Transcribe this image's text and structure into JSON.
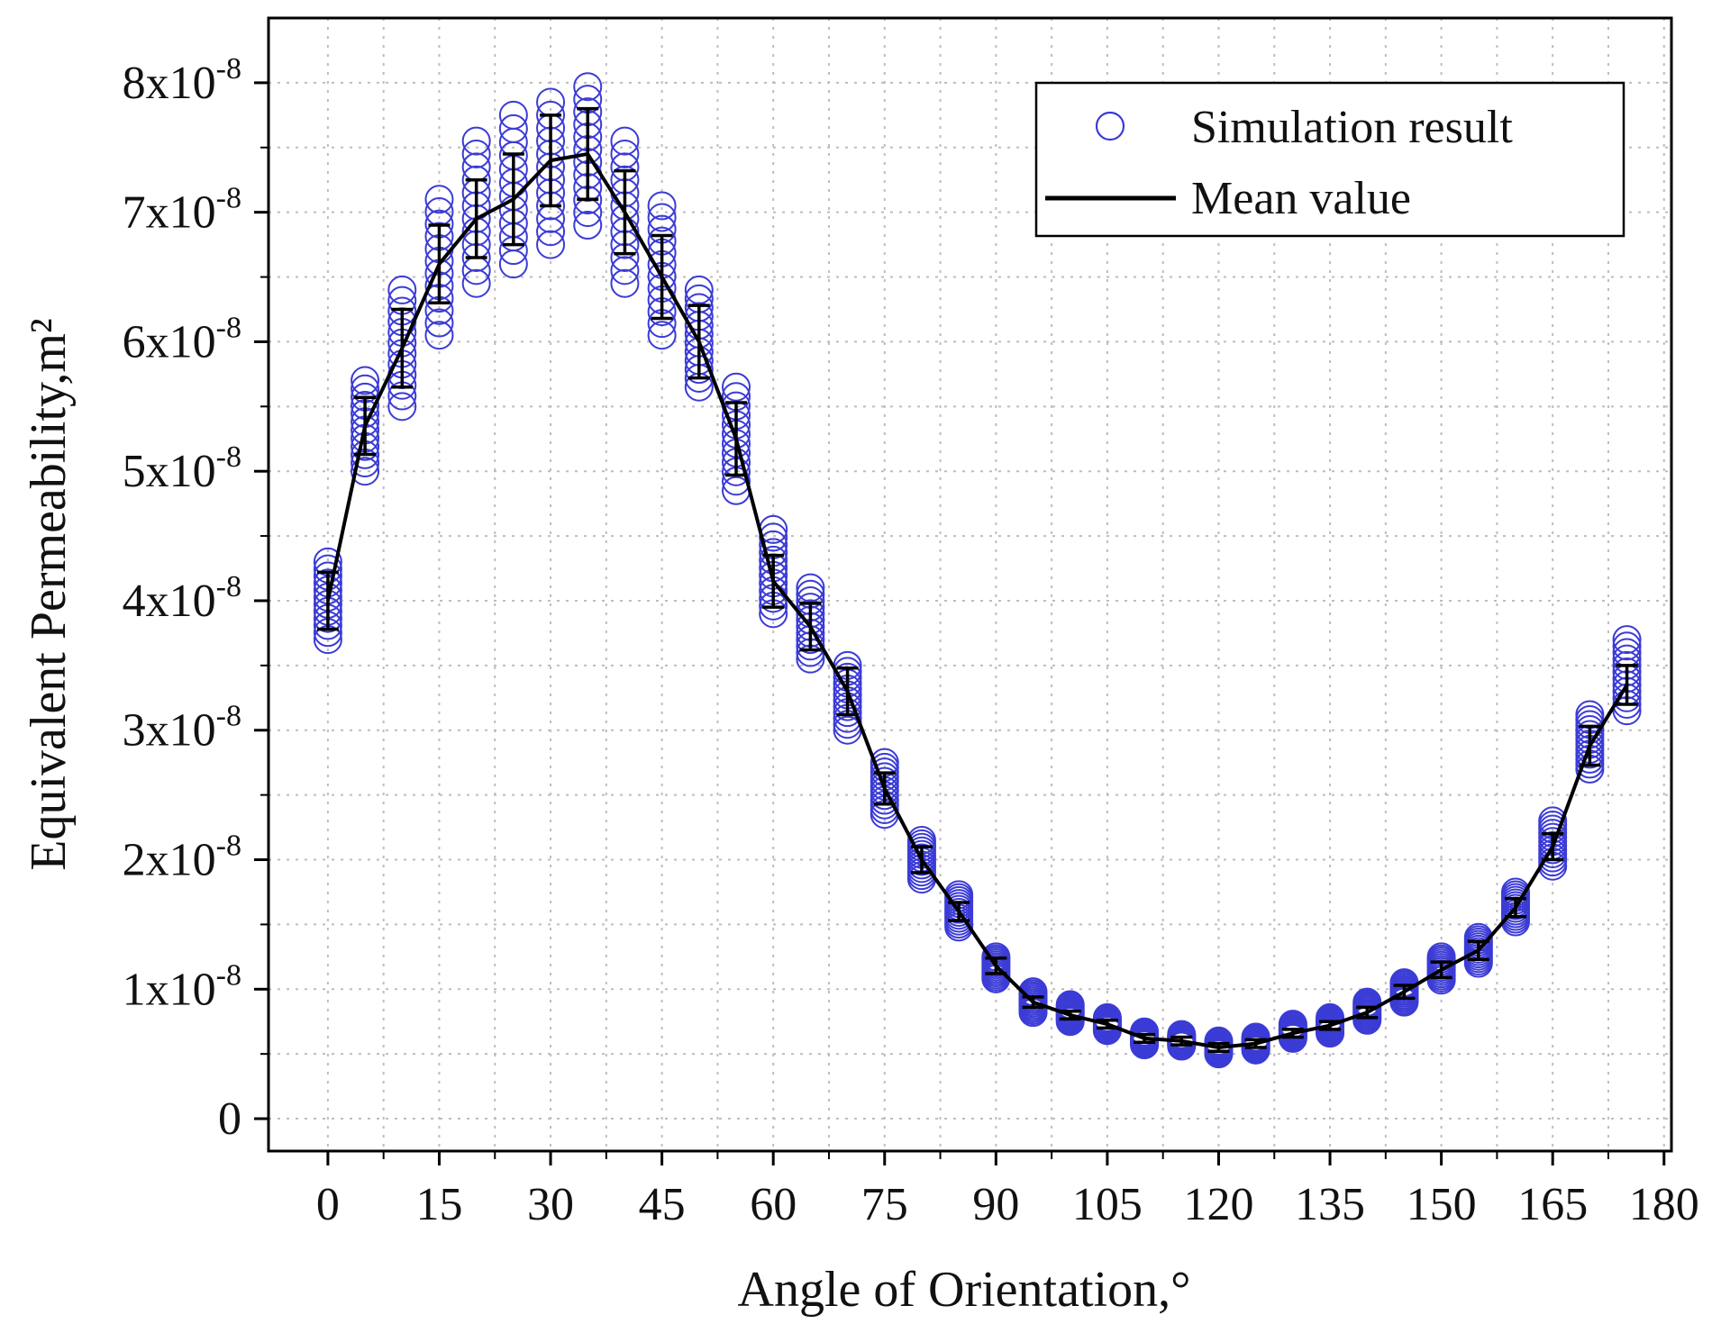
{
  "chart_data": {
    "type": "scatter",
    "xlabel": "Angle of Orientation,°",
    "ylabel": "Equivalent Permeability,m²",
    "xlim": [
      -8,
      181
    ],
    "ylim": [
      -2.5e-09,
      8.5e-08
    ],
    "x_ticks": [
      0,
      15,
      30,
      45,
      60,
      75,
      90,
      105,
      120,
      135,
      150,
      165,
      180
    ],
    "y_ticks": [
      {
        "value": 0,
        "mantissa": "0",
        "exponent": ""
      },
      {
        "value": 1e-08,
        "mantissa": "1x10",
        "exponent": "-8"
      },
      {
        "value": 2e-08,
        "mantissa": "2x10",
        "exponent": "-8"
      },
      {
        "value": 3e-08,
        "mantissa": "3x10",
        "exponent": "-8"
      },
      {
        "value": 4e-08,
        "mantissa": "4x10",
        "exponent": "-8"
      },
      {
        "value": 5e-08,
        "mantissa": "5x10",
        "exponent": "-8"
      },
      {
        "value": 6e-08,
        "mantissa": "6x10",
        "exponent": "-8"
      },
      {
        "value": 7e-08,
        "mantissa": "7x10",
        "exponent": "-8"
      },
      {
        "value": 8e-08,
        "mantissa": "8x10",
        "exponent": "-8"
      }
    ],
    "grid": true,
    "legend_position": "top-right",
    "series": [
      {
        "name": "Simulation result",
        "kind": "markers",
        "marker": "open-circle",
        "color": "#3b3bd6",
        "x": [
          0,
          5,
          10,
          15,
          20,
          25,
          30,
          35,
          40,
          45,
          50,
          55,
          60,
          65,
          70,
          75,
          80,
          85,
          90,
          95,
          100,
          105,
          110,
          115,
          120,
          125,
          130,
          135,
          140,
          145,
          150,
          155,
          160,
          165,
          170,
          175
        ],
        "y_min": [
          3.7e-08,
          5e-08,
          5.5e-08,
          6.05e-08,
          6.45e-08,
          6.6e-08,
          6.75e-08,
          6.9e-08,
          6.45e-08,
          6.05e-08,
          5.65e-08,
          4.85e-08,
          3.9e-08,
          3.55e-08,
          3e-08,
          2.35e-08,
          1.85e-08,
          1.48e-08,
          1.08e-08,
          8.2e-09,
          7.5e-09,
          6.8e-09,
          5.7e-09,
          5.6e-09,
          5e-09,
          5.3e-09,
          6.2e-09,
          6.6e-09,
          7.6e-09,
          9e-09,
          1.07e-08,
          1.2e-08,
          1.52e-08,
          1.95e-08,
          2.7e-08,
          3.15e-08
        ],
        "y_max": [
          4.3e-08,
          5.7e-08,
          6.4e-08,
          7.1e-08,
          7.55e-08,
          7.75e-08,
          7.85e-08,
          7.97e-08,
          7.55e-08,
          7.05e-08,
          6.4e-08,
          5.65e-08,
          4.55e-08,
          4.1e-08,
          3.5e-08,
          2.75e-08,
          2.15e-08,
          1.73e-08,
          1.25e-08,
          9.8e-09,
          8.8e-09,
          7.8e-09,
          6.7e-09,
          6.5e-09,
          6e-09,
          6.3e-09,
          7.3e-09,
          7.8e-09,
          9e-09,
          1.05e-08,
          1.25e-08,
          1.4e-08,
          1.75e-08,
          2.3e-08,
          3.12e-08,
          3.7e-08
        ]
      },
      {
        "name": "Mean value",
        "kind": "line-with-error-bars",
        "color": "#000000",
        "x": [
          0,
          5,
          10,
          15,
          20,
          25,
          30,
          35,
          40,
          45,
          50,
          55,
          60,
          65,
          70,
          75,
          80,
          85,
          90,
          95,
          100,
          105,
          110,
          115,
          120,
          125,
          130,
          135,
          140,
          145,
          150,
          155,
          160,
          165,
          170,
          175
        ],
        "y": [
          4e-08,
          5.35e-08,
          5.95e-08,
          6.6e-08,
          6.95e-08,
          7.1e-08,
          7.4e-08,
          7.45e-08,
          7e-08,
          6.5e-08,
          6e-08,
          5.25e-08,
          4.15e-08,
          3.8e-08,
          3.3e-08,
          2.55e-08,
          2e-08,
          1.6e-08,
          1.18e-08,
          9e-09,
          8e-09,
          7.3e-09,
          6.2e-09,
          6e-09,
          5.5e-09,
          5.8e-09,
          6.6e-09,
          7.2e-09,
          8.2e-09,
          9.8e-09,
          1.15e-08,
          1.3e-08,
          1.63e-08,
          2.1e-08,
          2.88e-08,
          3.35e-08
        ],
        "error": [
          2.2e-09,
          2.2e-09,
          3e-09,
          3e-09,
          3e-09,
          3.5e-09,
          3.5e-09,
          3.5e-09,
          3.2e-09,
          3.2e-09,
          2.8e-09,
          2.8e-09,
          2e-09,
          1.8e-09,
          1.8e-09,
          1.2e-09,
          1e-09,
          7e-10,
          6e-10,
          4e-10,
          3e-10,
          3e-10,
          3e-10,
          3e-10,
          3e-10,
          3e-10,
          3e-10,
          3e-10,
          4e-10,
          5e-10,
          6e-10,
          7e-10,
          7e-10,
          1e-09,
          1.5e-09,
          1.5e-09
        ]
      }
    ]
  }
}
